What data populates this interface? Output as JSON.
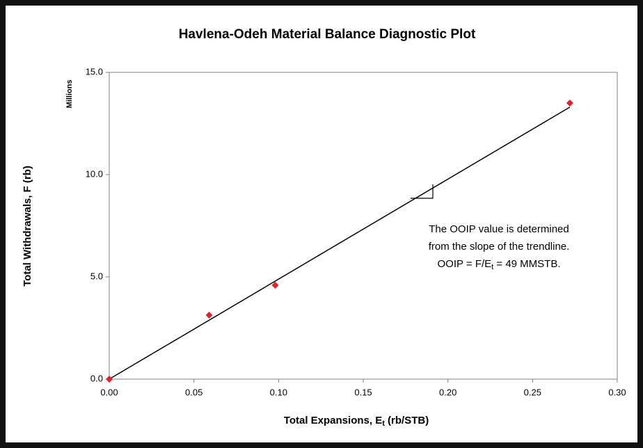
{
  "chart_data": {
    "type": "scatter",
    "title": "Havlena-Odeh Material Balance Diagnostic Plot",
    "x_label": {
      "text": "Total Expansions, E",
      "sub": "t",
      "rest": " (rb/STB)"
    },
    "y_label": "Total Withdrawals, F (rb)",
    "y_unit_label": "Millions",
    "series": [
      {
        "name": "Data",
        "color": "#e8202a",
        "x": [
          0.0,
          0.059,
          0.098,
          0.272
        ],
        "values": [
          0.0,
          3.13,
          4.59,
          13.5
        ]
      }
    ],
    "trendline": {
      "color": "#000000",
      "x": [
        0.0,
        0.272
      ],
      "y": [
        0.0,
        13.3
      ]
    },
    "annotation": {
      "lines": [
        "The OOIP value is determined",
        "from the slope of the trendline."
      ],
      "formula": {
        "pre": "OOIP = F/E",
        "sub": "t",
        "post": " = 49 MMSTB."
      }
    },
    "xlim": [
      0,
      0.3
    ],
    "ylim": [
      0,
      15
    ],
    "xticks": [
      {
        "value": 0,
        "label": "0.00"
      },
      {
        "value": 0.05,
        "label": "0.05"
      },
      {
        "value": 0.1,
        "label": "0.10"
      },
      {
        "value": 0.15,
        "label": "0.15"
      },
      {
        "value": 0.2,
        "label": "0.20"
      },
      {
        "value": 0.25,
        "label": "0.25"
      },
      {
        "value": 0.3,
        "label": "0.30"
      }
    ],
    "yticks": [
      {
        "value": 0,
        "label": "0.0"
      },
      {
        "value": 5,
        "label": "5.0"
      },
      {
        "value": 10,
        "label": "10.0"
      },
      {
        "value": 15,
        "label": "15.0"
      }
    ],
    "grid": false
  }
}
